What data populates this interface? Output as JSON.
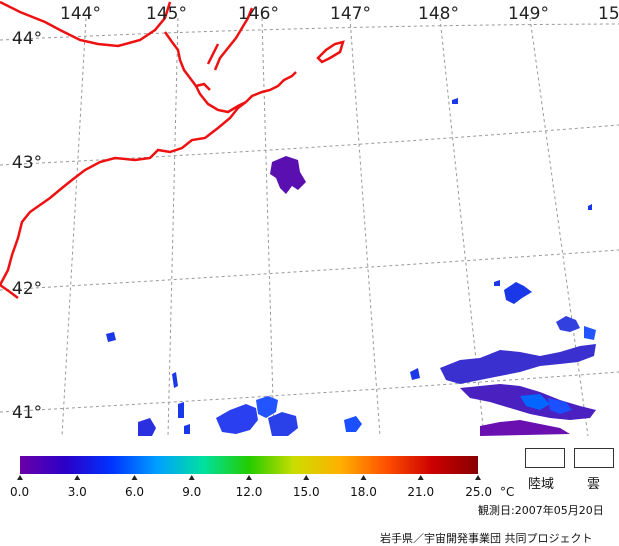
{
  "lon_labels": [
    "144°",
    "145°",
    "146°",
    "147°",
    "148°",
    "149°",
    "15"
  ],
  "lat_labels": [
    "44°",
    "43°",
    "42°",
    "41°"
  ],
  "colorbar": {
    "stops": [
      "#6a00a8",
      "#2a00c8",
      "#0033ff",
      "#00a0ff",
      "#00e0a0",
      "#22cc00",
      "#ccdd00",
      "#ffb000",
      "#ff5000",
      "#cc0000",
      "#880000"
    ],
    "tick_labels": [
      "0.0",
      "3.0",
      "6.0",
      "9.0",
      "12.0",
      "15.0",
      "18.0",
      "21.0",
      "25.0"
    ],
    "unit": "°C"
  },
  "legend": {
    "land": "陸域",
    "cloud": "雲"
  },
  "observation_date": "観測日:2007年05月20日",
  "credit": "岩手県／宇宙開発事業団 共同プロジェクト",
  "colors": {
    "coastline": "#ee1111",
    "grid": "#999999"
  }
}
